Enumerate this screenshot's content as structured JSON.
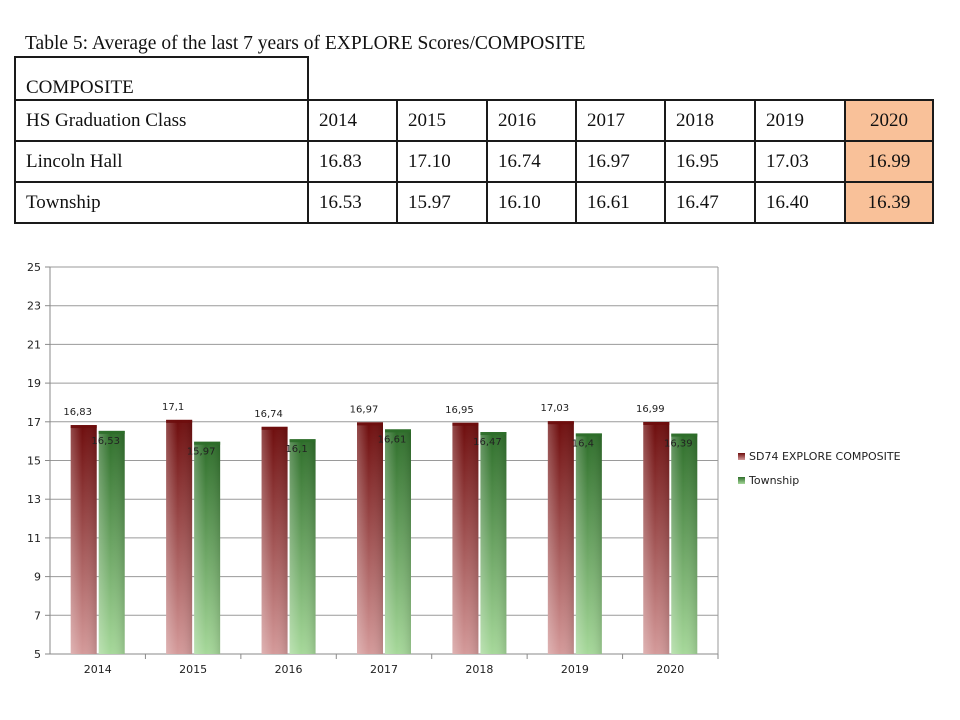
{
  "table": {
    "title": "Table 5: Average of the last 7 years of EXPLORE Scores/COMPOSITE",
    "section_label": "COMPOSITE",
    "header_label": "HS Graduation Class",
    "years": [
      "2014",
      "2015",
      "2016",
      "2017",
      "2018",
      "2019",
      "2020"
    ],
    "rows": [
      {
        "label": "Lincoln Hall",
        "values": [
          "16.83",
          "17.10",
          "16.74",
          "16.97",
          "16.95",
          "17.03",
          "16.99"
        ]
      },
      {
        "label": "Township",
        "values": [
          "16.53",
          "15.97",
          "16.10",
          "16.61",
          "16.47",
          "16.40",
          "16.39"
        ]
      }
    ],
    "highlight_color": "#f9c199"
  },
  "chart_data": {
    "type": "bar",
    "categories": [
      "2014",
      "2015",
      "2016",
      "2017",
      "2018",
      "2019",
      "2020"
    ],
    "series": [
      {
        "name": "SD74 EXPLORE COMPOSITE",
        "values": [
          16.83,
          17.1,
          16.74,
          16.97,
          16.95,
          17.03,
          16.99
        ],
        "labels": [
          "16,83",
          "17,1",
          "16,74",
          "16,97",
          "16,95",
          "17,03",
          "16,99"
        ],
        "color_top": "#6e0d0d",
        "color_bottom": "#d49a9a"
      },
      {
        "name": "Township",
        "values": [
          16.53,
          15.97,
          16.1,
          16.61,
          16.47,
          16.4,
          16.39
        ],
        "labels": [
          "16,53",
          "15,97",
          "16,1",
          "16,61",
          "16,47",
          "16,4",
          "16,39"
        ],
        "color_top": "#2e6e2a",
        "color_bottom": "#a6d89a"
      }
    ],
    "yticks": [
      "5",
      "7",
      "9",
      "11",
      "13",
      "15",
      "17",
      "19",
      "21",
      "23",
      "25"
    ],
    "ylim": [
      5,
      25
    ],
    "grid": true,
    "legend_position": "right"
  }
}
